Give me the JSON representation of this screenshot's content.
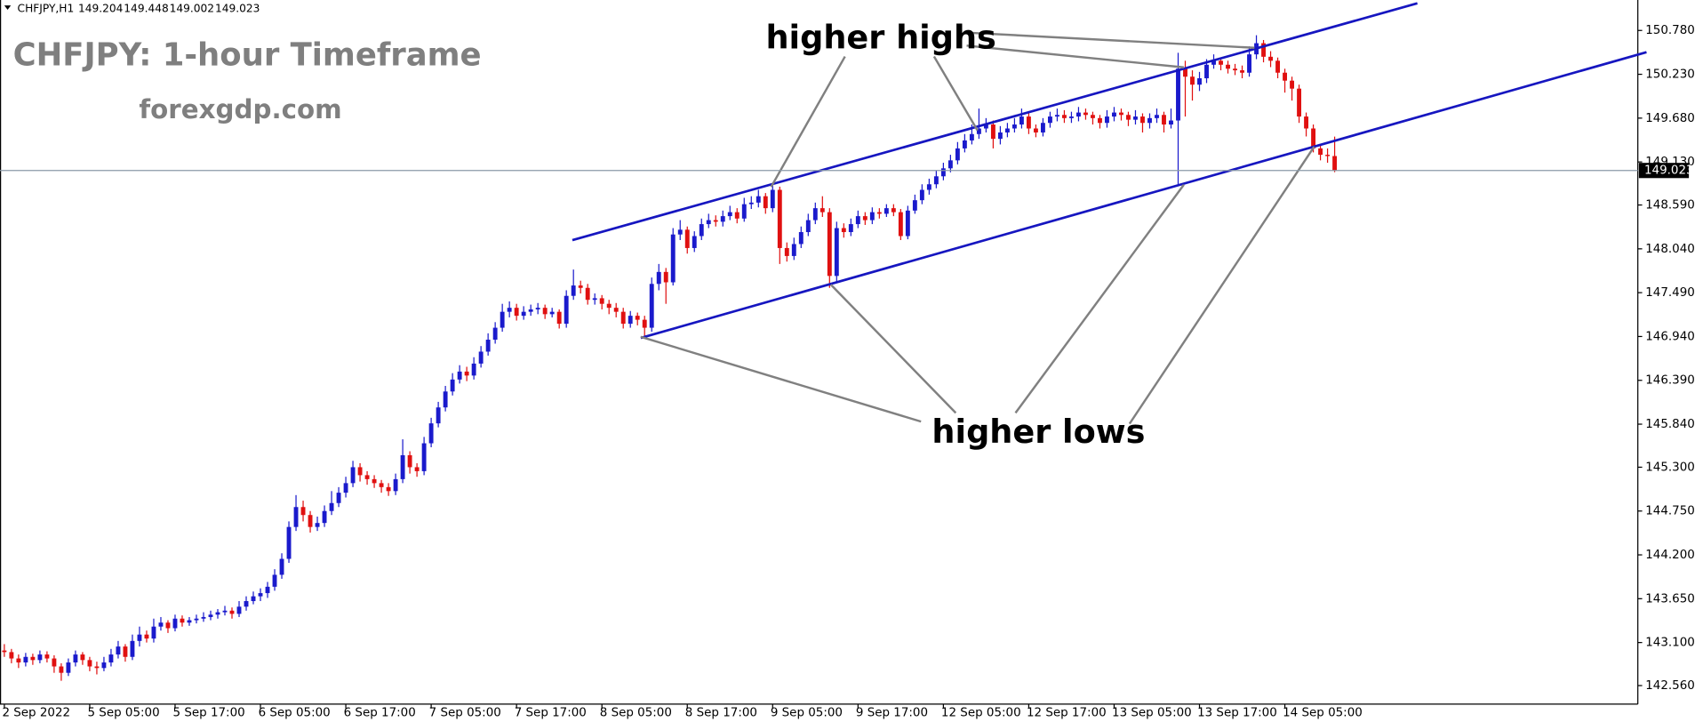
{
  "chart_data": {
    "type": "candlestick",
    "symbol": "CHFJPY,H1",
    "title": "CHFJPY: 1-hour Timeframe",
    "subtitle": "forexgdp.com",
    "annotations": [
      "higher highs",
      "higher lows"
    ],
    "up_color": "#1a1acc",
    "down_color": "#e01010",
    "grid": false,
    "ylim": [
      142.328,
      151.162
    ],
    "yticks": [
      {
        "value": 150.78,
        "label": "150.780"
      },
      {
        "value": 150.23,
        "label": "150.230"
      },
      {
        "value": 149.68,
        "label": "149.680"
      },
      {
        "value": 149.13,
        "label": "149.130"
      },
      {
        "value": 148.59,
        "label": "148.590"
      },
      {
        "value": 148.04,
        "label": "148.040"
      },
      {
        "value": 147.49,
        "label": "147.490"
      },
      {
        "value": 146.94,
        "label": "146.940"
      },
      {
        "value": 146.39,
        "label": "146.390"
      },
      {
        "value": 145.84,
        "label": "145.840"
      },
      {
        "value": 145.3,
        "label": "145.300"
      },
      {
        "value": 144.75,
        "label": "144.750"
      },
      {
        "value": 144.2,
        "label": "144.200"
      },
      {
        "value": 143.65,
        "label": "143.650"
      },
      {
        "value": 143.1,
        "label": "143.100"
      },
      {
        "value": 142.56,
        "label": "142.560"
      }
    ],
    "categories": [
      "2 Sep 2022",
      null,
      null,
      null,
      null,
      null,
      null,
      null,
      null,
      null,
      null,
      null,
      "5 Sep 05:00",
      null,
      null,
      null,
      null,
      null,
      null,
      null,
      null,
      null,
      null,
      null,
      "5 Sep 17:00",
      null,
      null,
      null,
      null,
      null,
      null,
      null,
      null,
      null,
      null,
      null,
      "6 Sep 05:00",
      null,
      null,
      null,
      null,
      null,
      null,
      null,
      null,
      null,
      null,
      null,
      "6 Sep 17:00",
      null,
      null,
      null,
      null,
      null,
      null,
      null,
      null,
      null,
      null,
      null,
      "7 Sep 05:00",
      null,
      null,
      null,
      null,
      null,
      null,
      null,
      null,
      null,
      null,
      null,
      "7 Sep 17:00",
      null,
      null,
      null,
      null,
      null,
      null,
      null,
      null,
      null,
      null,
      null,
      "8 Sep 05:00",
      null,
      null,
      null,
      null,
      null,
      null,
      null,
      null,
      null,
      null,
      null,
      "8 Sep 17:00",
      null,
      null,
      null,
      null,
      null,
      null,
      null,
      null,
      null,
      null,
      null,
      "9 Sep 05:00",
      null,
      null,
      null,
      null,
      null,
      null,
      null,
      null,
      null,
      null,
      null,
      "9 Sep 17:00",
      null,
      null,
      null,
      null,
      null,
      null,
      null,
      null,
      null,
      null,
      null,
      "12 Sep 05:00",
      null,
      null,
      null,
      null,
      null,
      null,
      null,
      null,
      null,
      null,
      null,
      "12 Sep 17:00",
      null,
      null,
      null,
      null,
      null,
      null,
      null,
      null,
      null,
      null,
      null,
      "13 Sep 05:00",
      null,
      null,
      null,
      null,
      null,
      null,
      null,
      null,
      null,
      null,
      null,
      "13 Sep 17:00",
      null,
      null,
      null,
      null,
      null,
      null,
      null,
      null,
      null,
      null,
      null,
      "14 Sep 05:00",
      null,
      null,
      null,
      null,
      null,
      null,
      null
    ],
    "open": [
      143.0,
      142.98,
      142.9,
      142.85,
      142.92,
      142.88,
      142.95,
      142.9,
      142.8,
      142.72,
      142.85,
      142.95,
      142.88,
      142.8,
      142.78,
      142.85,
      142.95,
      143.05,
      142.92,
      143.12,
      143.2,
      143.15,
      143.3,
      143.35,
      143.28,
      143.4,
      143.35,
      143.38,
      143.4,
      143.42,
      143.45,
      143.48,
      143.5,
      143.46,
      143.55,
      143.62,
      143.68,
      143.72,
      143.8,
      143.95,
      144.15,
      144.55,
      144.8,
      144.7,
      144.55,
      144.6,
      144.75,
      144.85,
      144.98,
      145.1,
      145.3,
      145.2,
      145.15,
      145.1,
      145.05,
      145.0,
      145.15,
      145.45,
      145.3,
      145.25,
      145.6,
      145.85,
      146.05,
      146.25,
      146.4,
      146.5,
      146.45,
      146.6,
      146.75,
      146.9,
      147.05,
      147.25,
      147.3,
      147.2,
      147.25,
      147.28,
      147.3,
      147.22,
      147.25,
      147.1,
      147.45,
      147.58,
      147.55,
      147.4,
      147.42,
      147.35,
      147.3,
      147.25,
      147.1,
      147.2,
      147.15,
      147.05,
      147.6,
      147.75,
      147.62,
      148.22,
      148.28,
      148.05,
      148.2,
      148.35,
      148.4,
      148.38,
      148.45,
      148.5,
      148.42,
      148.6,
      148.62,
      148.7,
      148.55,
      148.78,
      148.05,
      147.95,
      148.1,
      148.25,
      148.4,
      148.55,
      148.5,
      147.7,
      148.3,
      148.25,
      148.35,
      148.45,
      148.4,
      148.5,
      148.48,
      148.55,
      148.5,
      148.2,
      148.52,
      148.65,
      148.78,
      148.85,
      148.95,
      149.05,
      149.15,
      149.3,
      149.4,
      149.48,
      149.55,
      149.6,
      149.42,
      149.5,
      149.55,
      149.6,
      149.7,
      149.55,
      149.5,
      149.62,
      149.7,
      149.72,
      149.68,
      149.7,
      149.75,
      149.72,
      149.68,
      149.62,
      149.7,
      149.75,
      149.72,
      149.66,
      149.7,
      149.62,
      149.68,
      149.72,
      149.6,
      149.65,
      150.3,
      150.2,
      150.1,
      150.18,
      150.35,
      150.4,
      150.35,
      150.3,
      150.28,
      150.25,
      150.48,
      150.62,
      150.45,
      150.4,
      150.25,
      150.15,
      150.05,
      149.7,
      149.55,
      149.3,
      149.22,
      149.204
    ],
    "high": [
      143.08,
      143.02,
      142.95,
      142.97,
      142.96,
      143.0,
      142.99,
      142.94,
      142.84,
      142.9,
      143.0,
      142.98,
      142.92,
      142.86,
      142.92,
      143.02,
      143.12,
      143.08,
      143.2,
      143.3,
      143.25,
      143.4,
      143.42,
      143.38,
      143.45,
      143.44,
      143.42,
      143.45,
      143.48,
      143.5,
      143.52,
      143.56,
      143.54,
      143.62,
      143.68,
      143.74,
      143.78,
      143.86,
      144.02,
      144.22,
      144.62,
      144.95,
      144.88,
      144.75,
      144.68,
      144.82,
      145.0,
      145.05,
      145.18,
      145.38,
      145.35,
      145.25,
      145.2,
      145.14,
      145.1,
      145.22,
      145.65,
      145.5,
      145.35,
      145.68,
      145.92,
      146.12,
      146.32,
      146.48,
      146.58,
      146.56,
      146.68,
      146.82,
      146.98,
      147.12,
      147.35,
      147.38,
      147.35,
      147.32,
      147.34,
      147.36,
      147.34,
      147.3,
      147.28,
      147.52,
      147.78,
      147.64,
      147.6,
      147.48,
      147.46,
      147.4,
      147.36,
      147.3,
      147.26,
      147.24,
      147.2,
      147.68,
      147.85,
      147.8,
      148.3,
      148.4,
      148.32,
      148.26,
      148.42,
      148.48,
      148.46,
      148.52,
      148.58,
      148.55,
      148.68,
      148.7,
      148.78,
      148.74,
      148.86,
      148.82,
      148.12,
      148.18,
      148.32,
      148.48,
      148.62,
      148.7,
      148.55,
      148.38,
      148.36,
      148.42,
      148.52,
      148.5,
      148.56,
      148.55,
      148.6,
      148.6,
      148.54,
      148.58,
      148.72,
      148.85,
      148.92,
      149.02,
      149.12,
      149.22,
      149.38,
      149.48,
      149.6,
      149.8,
      149.68,
      149.65,
      149.58,
      149.62,
      149.68,
      149.8,
      149.74,
      149.6,
      149.68,
      149.76,
      149.8,
      149.78,
      149.76,
      149.82,
      149.8,
      149.76,
      149.72,
      149.78,
      149.82,
      149.8,
      149.76,
      149.78,
      149.74,
      149.74,
      149.8,
      149.76,
      149.8,
      150.5,
      150.4,
      150.28,
      150.26,
      150.42,
      150.48,
      150.44,
      150.4,
      150.36,
      150.34,
      150.58,
      150.72,
      150.66,
      150.52,
      150.44,
      150.3,
      150.2,
      150.1,
      149.75,
      149.6,
      149.35,
      149.3,
      149.448
    ],
    "low": [
      142.92,
      142.84,
      142.78,
      142.8,
      142.82,
      142.84,
      142.85,
      142.72,
      142.62,
      142.68,
      142.8,
      142.82,
      142.74,
      142.7,
      142.74,
      142.8,
      142.9,
      142.86,
      142.88,
      143.05,
      143.1,
      143.1,
      143.25,
      143.22,
      143.24,
      143.3,
      143.31,
      143.34,
      143.36,
      143.38,
      143.4,
      143.44,
      143.4,
      143.42,
      143.5,
      143.58,
      143.62,
      143.66,
      143.75,
      143.9,
      144.1,
      144.5,
      144.62,
      144.48,
      144.5,
      144.55,
      144.7,
      144.8,
      144.92,
      145.05,
      145.12,
      145.08,
      145.04,
      144.98,
      144.94,
      144.95,
      145.1,
      145.22,
      145.18,
      145.2,
      145.55,
      145.8,
      146.0,
      146.2,
      146.35,
      146.38,
      146.4,
      146.55,
      146.7,
      146.85,
      147.0,
      147.18,
      147.14,
      147.15,
      147.2,
      147.22,
      147.16,
      147.18,
      147.04,
      147.05,
      147.4,
      147.48,
      147.34,
      147.34,
      147.28,
      147.22,
      147.18,
      147.04,
      147.05,
      147.08,
      146.95,
      147.0,
      147.52,
      147.35,
      147.58,
      148.15,
      147.98,
      148.0,
      148.15,
      148.3,
      148.32,
      148.32,
      148.4,
      148.36,
      148.38,
      148.54,
      148.56,
      148.48,
      148.5,
      147.85,
      147.88,
      147.9,
      148.05,
      148.2,
      148.35,
      148.44,
      147.55,
      147.62,
      148.18,
      148.2,
      148.3,
      148.34,
      148.35,
      148.42,
      148.44,
      148.45,
      148.15,
      148.16,
      148.48,
      148.6,
      148.72,
      148.8,
      148.9,
      149.0,
      149.1,
      149.25,
      149.35,
      149.42,
      149.5,
      149.3,
      149.35,
      149.44,
      149.5,
      149.55,
      149.48,
      149.44,
      149.45,
      149.56,
      149.64,
      149.62,
      149.62,
      149.64,
      149.66,
      149.6,
      149.55,
      149.56,
      149.64,
      149.65,
      149.58,
      149.6,
      149.5,
      149.55,
      149.62,
      149.5,
      149.55,
      148.85,
      149.7,
      149.9,
      150.02,
      150.12,
      150.3,
      150.28,
      150.24,
      150.22,
      150.18,
      150.2,
      150.42,
      150.38,
      150.32,
      150.18,
      150.0,
      149.9,
      149.62,
      149.45,
      149.25,
      149.15,
      149.12,
      149.002
    ],
    "close": [
      142.98,
      142.9,
      142.85,
      142.92,
      142.88,
      142.95,
      142.9,
      142.8,
      142.72,
      142.85,
      142.95,
      142.88,
      142.8,
      142.78,
      142.85,
      142.95,
      143.05,
      142.92,
      143.12,
      143.2,
      143.15,
      143.3,
      143.35,
      143.28,
      143.4,
      143.35,
      143.38,
      143.4,
      143.42,
      143.45,
      143.48,
      143.5,
      143.46,
      143.55,
      143.62,
      143.68,
      143.72,
      143.8,
      143.95,
      144.15,
      144.55,
      144.8,
      144.7,
      144.55,
      144.6,
      144.75,
      144.85,
      144.98,
      145.1,
      145.3,
      145.2,
      145.15,
      145.1,
      145.05,
      145.0,
      145.15,
      145.45,
      145.3,
      145.25,
      145.6,
      145.85,
      146.05,
      146.25,
      146.4,
      146.5,
      146.45,
      146.6,
      146.75,
      146.9,
      147.05,
      147.25,
      147.3,
      147.2,
      147.25,
      147.28,
      147.3,
      147.22,
      147.25,
      147.1,
      147.45,
      147.58,
      147.55,
      147.4,
      147.42,
      147.35,
      147.3,
      147.25,
      147.1,
      147.2,
      147.15,
      147.05,
      147.6,
      147.75,
      147.62,
      148.22,
      148.28,
      148.05,
      148.2,
      148.35,
      148.4,
      148.38,
      148.45,
      148.5,
      148.42,
      148.6,
      148.62,
      148.7,
      148.55,
      148.78,
      148.05,
      147.95,
      148.1,
      148.25,
      148.4,
      148.55,
      148.5,
      147.7,
      148.3,
      148.25,
      148.35,
      148.45,
      148.4,
      148.5,
      148.48,
      148.55,
      148.5,
      148.2,
      148.52,
      148.65,
      148.78,
      148.85,
      148.95,
      149.05,
      149.15,
      149.3,
      149.4,
      149.48,
      149.55,
      149.6,
      149.42,
      149.5,
      149.55,
      149.6,
      149.7,
      149.55,
      149.5,
      149.62,
      149.7,
      149.72,
      149.68,
      149.7,
      149.75,
      149.72,
      149.68,
      149.62,
      149.7,
      149.75,
      149.72,
      149.66,
      149.7,
      149.62,
      149.68,
      149.72,
      149.6,
      149.65,
      150.3,
      150.2,
      150.1,
      150.18,
      150.35,
      150.4,
      150.35,
      150.3,
      150.28,
      150.25,
      150.48,
      150.62,
      150.45,
      150.4,
      150.25,
      150.15,
      150.05,
      149.7,
      149.55,
      149.3,
      149.22,
      149.204,
      149.023
    ]
  }
}
